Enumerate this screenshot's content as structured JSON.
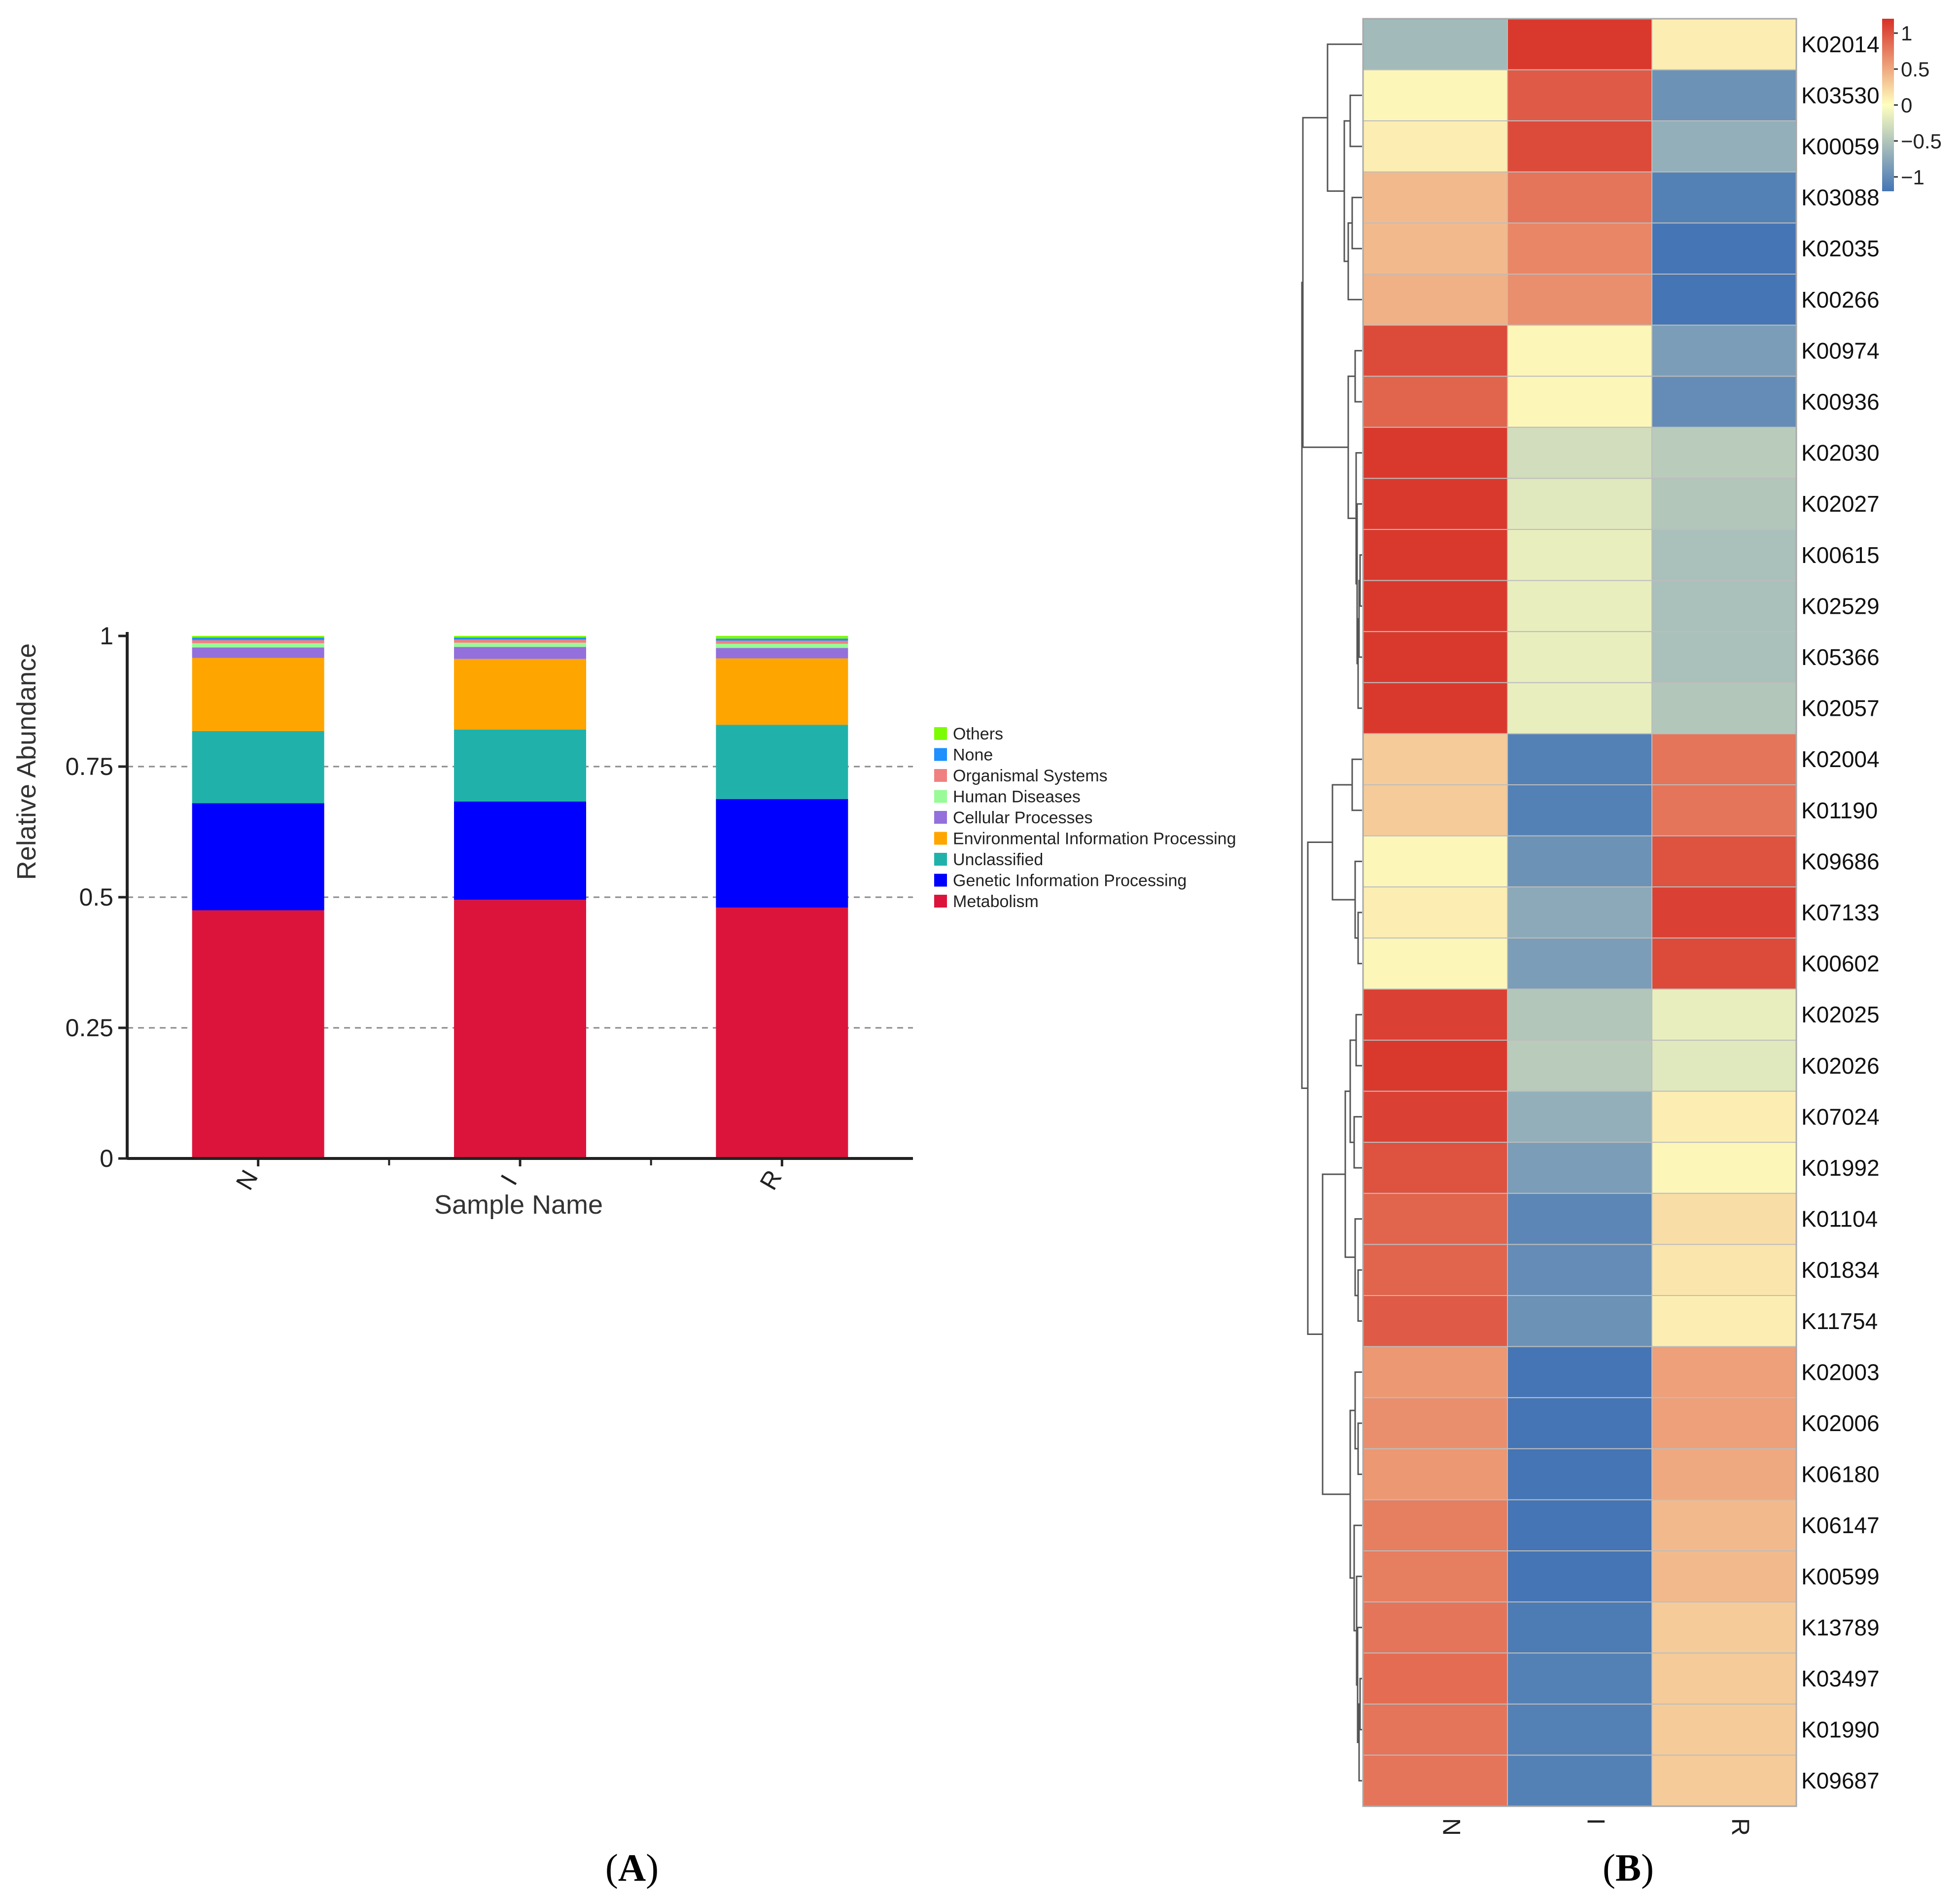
{
  "figure": {
    "panel_a_label": "A",
    "panel_b_label": "B"
  },
  "chart_data": [
    {
      "type": "bar",
      "stacked": true,
      "title": "",
      "xlabel": "Sample Name",
      "ylabel": "Relative Abundance",
      "ylim": [
        0,
        1
      ],
      "yticks": [
        0,
        0.25,
        0.5,
        0.75,
        1
      ],
      "ytick_labels": [
        "0",
        "0.25",
        "0.5",
        "0.75",
        "1"
      ],
      "grid": "dashed horizontal at 0.25, 0.5, 0.75",
      "legend_position": "right",
      "categories": [
        "N",
        "I",
        "R"
      ],
      "series": [
        {
          "name": "Metabolism",
          "color": "#dc143c",
          "values": [
            0.475,
            0.495,
            0.48
          ]
        },
        {
          "name": "Genetic Information Processing",
          "color": "#0000ff",
          "values": [
            0.205,
            0.188,
            0.208
          ]
        },
        {
          "name": "Unclassified",
          "color": "#20b2aa",
          "values": [
            0.138,
            0.138,
            0.142
          ]
        },
        {
          "name": "Environmental Information Processing",
          "color": "#ffa500",
          "values": [
            0.14,
            0.135,
            0.127
          ]
        },
        {
          "name": "Cellular Processes",
          "color": "#9370db",
          "values": [
            0.02,
            0.023,
            0.02
          ]
        },
        {
          "name": "Human Diseases",
          "color": "#98fb98",
          "values": [
            0.008,
            0.008,
            0.008
          ]
        },
        {
          "name": "Organismal Systems",
          "color": "#f08080",
          "values": [
            0.006,
            0.006,
            0.006
          ]
        },
        {
          "name": "None",
          "color": "#1e90ff",
          "values": [
            0.005,
            0.004,
            0.004
          ]
        },
        {
          "name": "Others",
          "color": "#7cfc00",
          "values": [
            0.003,
            0.003,
            0.005
          ]
        }
      ],
      "legend_order": [
        "Others",
        "None",
        "Organismal Systems",
        "Human Diseases",
        "Cellular Processes",
        "Environmental Information Processing",
        "Unclassified",
        "Genetic Information Processing",
        "Metabolism"
      ]
    },
    {
      "type": "heatmap",
      "title": "",
      "columns": [
        "N",
        "I",
        "R"
      ],
      "rows": [
        "K02014",
        "K03530",
        "K00059",
        "K03088",
        "K02035",
        "K00266",
        "K00974",
        "K00936",
        "K02030",
        "K02027",
        "K00615",
        "K02529",
        "K05366",
        "K02057",
        "K02004",
        "K01190",
        "K09686",
        "K07133",
        "K00602",
        "K02025",
        "K02026",
        "K07024",
        "K01992",
        "K01104",
        "K01834",
        "K11754",
        "K02003",
        "K02006",
        "K06180",
        "K06147",
        "K00599",
        "K13789",
        "K03497",
        "K01990",
        "K09687"
      ],
      "values": [
        [
          -0.6,
          1.15,
          0.1
        ],
        [
          0.05,
          0.95,
          -0.95
        ],
        [
          0.1,
          1.05,
          -0.7
        ],
        [
          0.4,
          0.8,
          -1.1
        ],
        [
          0.4,
          0.7,
          -1.2
        ],
        [
          0.45,
          0.65,
          -1.2
        ],
        [
          1.05,
          0.05,
          -0.85
        ],
        [
          0.9,
          0.05,
          -1.0
        ],
        [
          1.15,
          -0.3,
          -0.45
        ],
        [
          1.15,
          -0.2,
          -0.5
        ],
        [
          1.15,
          -0.15,
          -0.55
        ],
        [
          1.15,
          -0.15,
          -0.55
        ],
        [
          1.15,
          -0.15,
          -0.55
        ],
        [
          1.15,
          -0.15,
          -0.5
        ],
        [
          0.3,
          -1.1,
          0.8
        ],
        [
          0.3,
          -1.1,
          0.8
        ],
        [
          0.05,
          -0.95,
          1.0
        ],
        [
          0.1,
          -0.75,
          1.1
        ],
        [
          0.05,
          -0.85,
          1.05
        ],
        [
          1.1,
          -0.5,
          -0.15
        ],
        [
          1.15,
          -0.45,
          -0.2
        ],
        [
          1.1,
          -0.7,
          0.1
        ],
        [
          1.0,
          -0.85,
          0.05
        ],
        [
          0.9,
          -1.05,
          0.2
        ],
        [
          0.9,
          -1.0,
          0.15
        ],
        [
          0.95,
          -0.95,
          0.1
        ],
        [
          0.6,
          -1.2,
          0.55
        ],
        [
          0.65,
          -1.2,
          0.55
        ],
        [
          0.6,
          -1.2,
          0.5
        ],
        [
          0.75,
          -1.2,
          0.4
        ],
        [
          0.75,
          -1.2,
          0.4
        ],
        [
          0.8,
          -1.15,
          0.3
        ],
        [
          0.85,
          -1.1,
          0.3
        ],
        [
          0.8,
          -1.1,
          0.3
        ],
        [
          0.8,
          -1.1,
          0.3
        ]
      ],
      "colorbar": {
        "range": [
          -1.2,
          1.2
        ],
        "ticks": [
          1,
          0.5,
          0,
          -0.5,
          -1
        ],
        "tick_labels": [
          "1",
          "0.5",
          "0",
          "−0.5",
          "−1"
        ],
        "low_color": "#4575b4",
        "mid_color": "#ffffbf",
        "high_color": "#d73027"
      },
      "row_dendrogram": true
    }
  ]
}
